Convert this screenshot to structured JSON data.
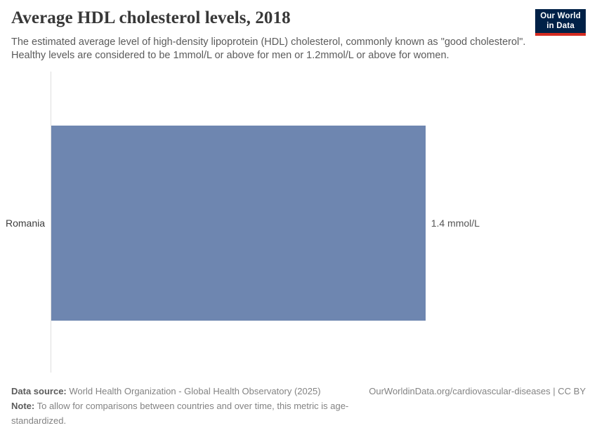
{
  "header": {
    "title": "Average HDL cholesterol levels, 2018",
    "subtitle": "The estimated average level of high-density lipoprotein (HDL) cholesterol, commonly known as \"good cholesterol\". Healthy levels are considered to be 1mmol/L or above for men or 1.2mmol/L or above for women.",
    "logo": {
      "line1": "Our World",
      "line2": "in Data",
      "bg_color": "#002147",
      "accent_color": "#d42b21"
    }
  },
  "chart_data": {
    "type": "bar",
    "orientation": "horizontal",
    "title": "Average HDL cholesterol levels, 2018",
    "categories": [
      "Romania"
    ],
    "values": [
      1.4
    ],
    "value_labels": [
      "1.4 mmol/L"
    ],
    "unit": "mmol/L",
    "xlim": [
      0,
      2
    ],
    "grid": false,
    "legend": "none",
    "bar_color": "#6e86b0",
    "axis_line_color": "#dedede"
  },
  "footer": {
    "source_label": "Data source:",
    "source_text": "World Health Organization - Global Health Observatory (2025)",
    "note_label": "Note:",
    "note_text": "To allow for comparisons between countries and over time, this metric is age-standardized.",
    "attribution": "OurWorldinData.org/cardiovascular-diseases | CC BY"
  }
}
